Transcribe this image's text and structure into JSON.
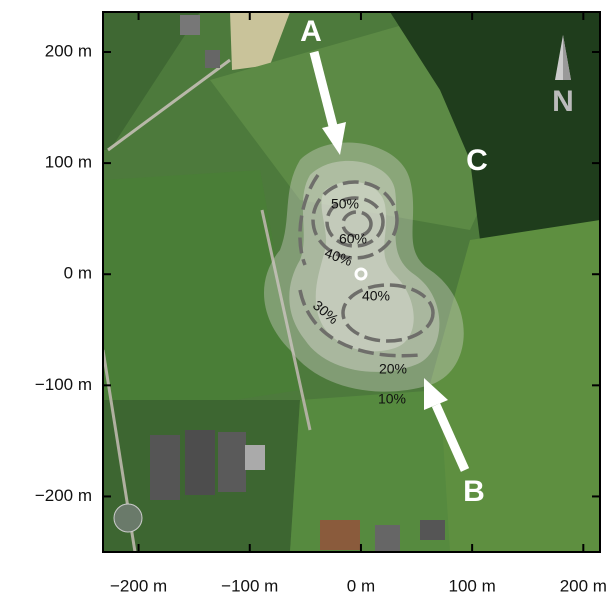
{
  "chart_data": {
    "type": "map",
    "xlim": [
      -232,
      215
    ],
    "ylim": [
      -250,
      236
    ],
    "xticks": [
      {
        "value": -200,
        "label": "−200 m"
      },
      {
        "value": -100,
        "label": "−100 m"
      },
      {
        "value": 0,
        "label": "0 m"
      },
      {
        "value": 100,
        "label": "100 m"
      },
      {
        "value": 200,
        "label": "200 m"
      }
    ],
    "yticks": [
      {
        "value": -200,
        "label": "−200 m"
      },
      {
        "value": -100,
        "label": "−100 m"
      },
      {
        "value": 0,
        "label": "0 m"
      },
      {
        "value": 100,
        "label": "100 m"
      },
      {
        "value": 200,
        "label": "200 m"
      }
    ],
    "annotations": [
      "A",
      "B",
      "C",
      "N"
    ],
    "contour_labels": [
      "50%",
      "60%",
      "40%",
      "40%",
      "30%",
      "20%",
      "10%"
    ]
  }
}
